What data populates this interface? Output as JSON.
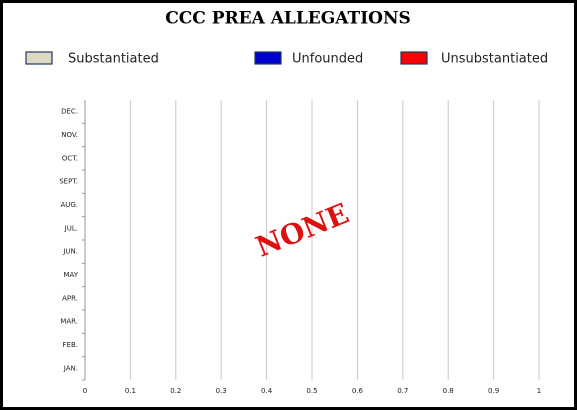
{
  "chart_data": {
    "type": "stacked-barh",
    "title": "CCC PREA ALLEGATIONS",
    "categories": [
      "JAN.",
      "FEB.",
      "MAR.",
      "APR.",
      "MAY",
      "JUN.",
      "JUL.",
      "AUG.",
      "SEPT.",
      "OCT.",
      "NOV.",
      "DEC."
    ],
    "series": [
      {
        "name": "Substantiated",
        "color": "#ddd9c3",
        "values": [
          0,
          0,
          0,
          0,
          0,
          0,
          0,
          0,
          0,
          0,
          0,
          0
        ]
      },
      {
        "name": "Unfounded",
        "color": "#0000cc",
        "values": [
          0,
          0,
          0,
          0,
          0,
          0,
          0,
          0,
          0,
          0,
          0,
          0
        ]
      },
      {
        "name": "Unsubstantiated",
        "color": "#ff0000",
        "values": [
          0,
          0,
          0,
          0,
          0,
          0,
          0,
          0,
          0,
          0,
          0,
          0
        ]
      }
    ],
    "xlim": [
      0,
      1
    ],
    "xticks": [
      0,
      0.1,
      0.2,
      0.3,
      0.4,
      0.5,
      0.6,
      0.7,
      0.8,
      0.9,
      1
    ],
    "grid": true,
    "legend": "top",
    "annotation": "NONE"
  }
}
